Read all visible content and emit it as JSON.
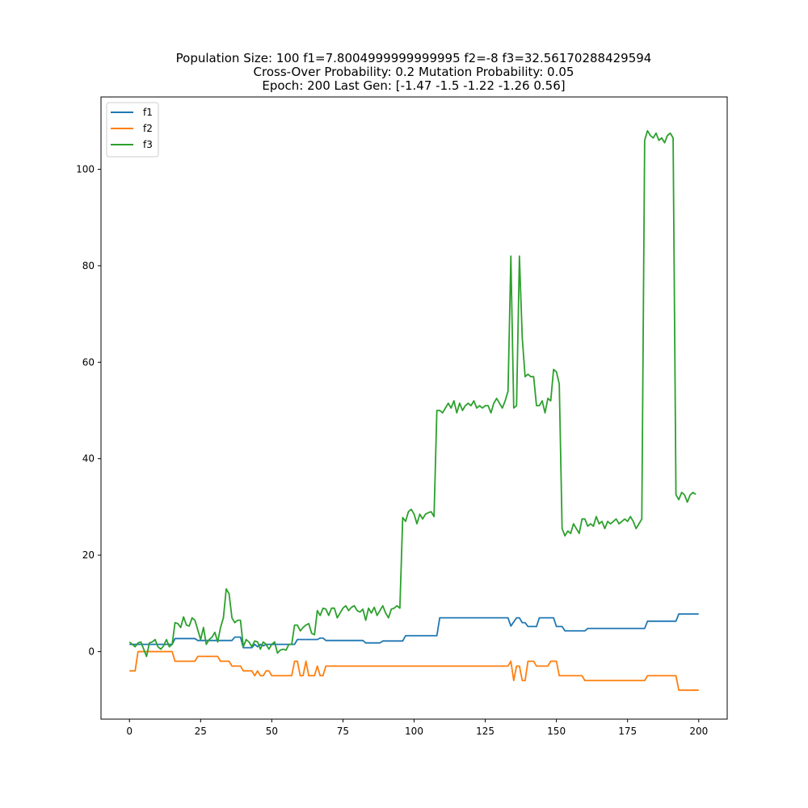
{
  "chart_data": {
    "type": "line",
    "title_lines": [
      "Population Size: 100 f1=7.8004999999999995 f2=-8 f3=32.56170288429594",
      "Cross-Over Probability: 0.2 Mutation Probability: 0.05",
      "Epoch: 200 Last Gen: [-1.47 -1.5  -1.22 -1.26  0.56]"
    ],
    "xlabel": "",
    "ylabel": "",
    "xlim": [
      -10,
      210
    ],
    "ylim": [
      -14,
      115
    ],
    "xticks": [
      0,
      25,
      50,
      75,
      100,
      125,
      150,
      175,
      200
    ],
    "yticks": [
      0,
      20,
      40,
      60,
      80,
      100
    ],
    "grid": false,
    "legend_position": "upper-left",
    "colors": {
      "f1": "#1f77b4",
      "f2": "#ff7f0e",
      "f3": "#2ca02c",
      "axes": "#000000"
    },
    "series": [
      {
        "name": "f1",
        "points": [
          [
            0,
            1.5
          ],
          [
            15,
            1.5
          ],
          [
            16,
            2.7
          ],
          [
            23,
            2.7
          ],
          [
            24,
            2.3
          ],
          [
            36,
            2.3
          ],
          [
            37,
            3.0
          ],
          [
            39,
            3.0
          ],
          [
            40,
            0.8
          ],
          [
            43,
            0.8
          ],
          [
            44,
            1.5
          ],
          [
            45,
            1.0
          ],
          [
            46,
            1.5
          ],
          [
            47,
            1.2
          ],
          [
            48,
            1.5
          ],
          [
            50,
            1.5
          ],
          [
            58,
            1.5
          ],
          [
            59,
            2.5
          ],
          [
            66,
            2.5
          ],
          [
            67,
            2.8
          ],
          [
            68,
            2.8
          ],
          [
            69,
            2.3
          ],
          [
            82,
            2.3
          ],
          [
            83,
            1.8
          ],
          [
            88,
            1.8
          ],
          [
            89,
            2.2
          ],
          [
            96,
            2.2
          ],
          [
            97,
            3.3
          ],
          [
            108,
            3.3
          ],
          [
            109,
            7.0
          ],
          [
            133,
            7.0
          ],
          [
            134,
            5.3
          ],
          [
            136,
            7.0
          ],
          [
            137,
            7.0
          ],
          [
            138,
            6.0
          ],
          [
            139,
            6.0
          ],
          [
            140,
            5.2
          ],
          [
            143,
            5.2
          ],
          [
            144,
            7.0
          ],
          [
            149,
            7.0
          ],
          [
            150,
            5.2
          ],
          [
            152,
            5.2
          ],
          [
            153,
            4.3
          ],
          [
            160,
            4.3
          ],
          [
            161,
            4.8
          ],
          [
            181,
            4.8
          ],
          [
            182,
            6.3
          ],
          [
            192,
            6.3
          ],
          [
            193,
            7.8
          ],
          [
            200,
            7.8
          ]
        ]
      },
      {
        "name": "f2",
        "points": [
          [
            0,
            -4
          ],
          [
            2,
            -4
          ],
          [
            3,
            0
          ],
          [
            15,
            0
          ],
          [
            16,
            -2
          ],
          [
            23,
            -2
          ],
          [
            24,
            -1
          ],
          [
            31,
            -1
          ],
          [
            32,
            -2
          ],
          [
            35,
            -2
          ],
          [
            36,
            -3
          ],
          [
            39,
            -3
          ],
          [
            40,
            -4
          ],
          [
            43,
            -4
          ],
          [
            44,
            -5
          ],
          [
            45,
            -4
          ],
          [
            46,
            -5
          ],
          [
            47,
            -5
          ],
          [
            48,
            -4
          ],
          [
            49,
            -4
          ],
          [
            50,
            -5
          ],
          [
            57,
            -5
          ],
          [
            58,
            -2
          ],
          [
            59,
            -2
          ],
          [
            60,
            -5
          ],
          [
            61,
            -5
          ],
          [
            62,
            -2
          ],
          [
            63,
            -5
          ],
          [
            65,
            -5
          ],
          [
            66,
            -3
          ],
          [
            67,
            -5
          ],
          [
            68,
            -5
          ],
          [
            69,
            -3
          ],
          [
            133,
            -3
          ],
          [
            134,
            -2
          ],
          [
            135,
            -6
          ],
          [
            136,
            -3
          ],
          [
            137,
            -3
          ],
          [
            138,
            -6
          ],
          [
            139,
            -6
          ],
          [
            140,
            -2
          ],
          [
            142,
            -2
          ],
          [
            143,
            -3
          ],
          [
            147,
            -3
          ],
          [
            148,
            -2
          ],
          [
            150,
            -2
          ],
          [
            151,
            -5
          ],
          [
            159,
            -5
          ],
          [
            160,
            -6
          ],
          [
            181,
            -6
          ],
          [
            182,
            -5
          ],
          [
            192,
            -5
          ],
          [
            193,
            -8
          ],
          [
            200,
            -8
          ]
        ]
      },
      {
        "name": "f3",
        "points": [
          [
            0,
            2.0
          ],
          [
            1,
            1.5
          ],
          [
            2,
            1.0
          ],
          [
            3,
            1.8
          ],
          [
            4,
            2.0
          ],
          [
            5,
            0.5
          ],
          [
            6,
            -1.0
          ],
          [
            7,
            1.8
          ],
          [
            8,
            2.0
          ],
          [
            9,
            2.5
          ],
          [
            10,
            1.0
          ],
          [
            11,
            0.5
          ],
          [
            12,
            1.2
          ],
          [
            13,
            2.5
          ],
          [
            14,
            1.0
          ],
          [
            15,
            1.5
          ],
          [
            16,
            6.0
          ],
          [
            17,
            5.8
          ],
          [
            18,
            5.0
          ],
          [
            19,
            7.2
          ],
          [
            20,
            5.5
          ],
          [
            21,
            5.3
          ],
          [
            22,
            7.0
          ],
          [
            23,
            6.5
          ],
          [
            24,
            4.5
          ],
          [
            25,
            2.5
          ],
          [
            26,
            5.0
          ],
          [
            27,
            1.5
          ],
          [
            28,
            2.5
          ],
          [
            29,
            3.0
          ],
          [
            30,
            4.0
          ],
          [
            31,
            2.0
          ],
          [
            32,
            5.0
          ],
          [
            33,
            7.0
          ],
          [
            34,
            13.0
          ],
          [
            35,
            12.0
          ],
          [
            36,
            7.0
          ],
          [
            37,
            6.0
          ],
          [
            38,
            6.5
          ],
          [
            39,
            6.5
          ],
          [
            40,
            1.0
          ],
          [
            41,
            2.5
          ],
          [
            42,
            2.0
          ],
          [
            43,
            1.0
          ],
          [
            44,
            2.2
          ],
          [
            45,
            2.0
          ],
          [
            46,
            0.5
          ],
          [
            47,
            2.0
          ],
          [
            48,
            1.5
          ],
          [
            49,
            0.5
          ],
          [
            50,
            1.5
          ],
          [
            51,
            2.0
          ],
          [
            52,
            -0.3
          ],
          [
            53,
            0.3
          ],
          [
            54,
            0.5
          ],
          [
            55,
            0.3
          ],
          [
            56,
            1.5
          ],
          [
            57,
            1.5
          ],
          [
            58,
            5.5
          ],
          [
            59,
            5.5
          ],
          [
            60,
            4.3
          ],
          [
            61,
            5.0
          ],
          [
            62,
            5.5
          ],
          [
            63,
            5.8
          ],
          [
            64,
            3.8
          ],
          [
            65,
            3.5
          ],
          [
            66,
            8.5
          ],
          [
            67,
            7.5
          ],
          [
            68,
            9.0
          ],
          [
            69,
            8.8
          ],
          [
            70,
            7.5
          ],
          [
            71,
            9.0
          ],
          [
            72,
            9.0
          ],
          [
            73,
            7.0
          ],
          [
            74,
            8.0
          ],
          [
            75,
            9.0
          ],
          [
            76,
            9.5
          ],
          [
            77,
            8.5
          ],
          [
            78,
            9.2
          ],
          [
            79,
            9.5
          ],
          [
            80,
            8.5
          ],
          [
            81,
            8.2
          ],
          [
            82,
            8.8
          ],
          [
            83,
            6.5
          ],
          [
            84,
            9.0
          ],
          [
            85,
            8.0
          ],
          [
            86,
            9.2
          ],
          [
            87,
            7.5
          ],
          [
            88,
            8.5
          ],
          [
            89,
            9.5
          ],
          [
            90,
            8.0
          ],
          [
            91,
            7.0
          ],
          [
            92,
            8.8
          ],
          [
            93,
            9.0
          ],
          [
            94,
            9.5
          ],
          [
            95,
            9.0
          ],
          [
            96,
            27.8
          ],
          [
            97,
            27.0
          ],
          [
            98,
            29.0
          ],
          [
            99,
            29.5
          ],
          [
            100,
            28.5
          ],
          [
            101,
            26.5
          ],
          [
            102,
            28.5
          ],
          [
            103,
            27.5
          ],
          [
            104,
            28.5
          ],
          [
            105,
            28.8
          ],
          [
            106,
            29.0
          ],
          [
            107,
            28.0
          ],
          [
            108,
            50.0
          ],
          [
            109,
            50.0
          ],
          [
            110,
            49.5
          ],
          [
            111,
            50.5
          ],
          [
            112,
            51.5
          ],
          [
            113,
            50.5
          ],
          [
            114,
            52.0
          ],
          [
            115,
            49.5
          ],
          [
            116,
            51.5
          ],
          [
            117,
            50.0
          ],
          [
            118,
            51.0
          ],
          [
            119,
            51.5
          ],
          [
            120,
            51.0
          ],
          [
            121,
            52.0
          ],
          [
            122,
            50.5
          ],
          [
            123,
            51.0
          ],
          [
            124,
            50.5
          ],
          [
            125,
            51.0
          ],
          [
            126,
            51.0
          ],
          [
            127,
            49.5
          ],
          [
            128,
            51.5
          ],
          [
            129,
            52.5
          ],
          [
            130,
            51.5
          ],
          [
            131,
            50.5
          ],
          [
            132,
            52.0
          ],
          [
            133,
            54.0
          ],
          [
            134,
            82.0
          ],
          [
            135,
            50.5
          ],
          [
            136,
            51.0
          ],
          [
            137,
            82.0
          ],
          [
            138,
            65.0
          ],
          [
            139,
            57.0
          ],
          [
            140,
            57.5
          ],
          [
            141,
            57.0
          ],
          [
            142,
            57.0
          ],
          [
            143,
            51.0
          ],
          [
            144,
            51.0
          ],
          [
            145,
            52.0
          ],
          [
            146,
            49.5
          ],
          [
            147,
            52.5
          ],
          [
            148,
            52.0
          ],
          [
            149,
            58.5
          ],
          [
            150,
            58.0
          ],
          [
            151,
            55.5
          ],
          [
            152,
            25.5
          ],
          [
            153,
            24.0
          ],
          [
            154,
            25.0
          ],
          [
            155,
            24.5
          ],
          [
            156,
            26.5
          ],
          [
            157,
            25.5
          ],
          [
            158,
            24.5
          ],
          [
            159,
            27.5
          ],
          [
            160,
            27.5
          ],
          [
            161,
            26.0
          ],
          [
            162,
            26.5
          ],
          [
            163,
            26.0
          ],
          [
            164,
            28.0
          ],
          [
            165,
            26.5
          ],
          [
            166,
            27.0
          ],
          [
            167,
            25.5
          ],
          [
            168,
            27.0
          ],
          [
            169,
            26.5
          ],
          [
            170,
            27.0
          ],
          [
            171,
            27.5
          ],
          [
            172,
            26.5
          ],
          [
            173,
            27.0
          ],
          [
            174,
            27.5
          ],
          [
            175,
            27.0
          ],
          [
            176,
            28.0
          ],
          [
            177,
            27.0
          ],
          [
            178,
            25.5
          ],
          [
            179,
            26.5
          ],
          [
            180,
            27.5
          ],
          [
            181,
            106.0
          ],
          [
            182,
            108.0
          ],
          [
            183,
            107.0
          ],
          [
            184,
            106.5
          ],
          [
            185,
            107.5
          ],
          [
            186,
            106.0
          ],
          [
            187,
            106.5
          ],
          [
            188,
            105.5
          ],
          [
            189,
            107.0
          ],
          [
            190,
            107.5
          ],
          [
            191,
            106.5
          ],
          [
            192,
            32.5
          ],
          [
            193,
            31.5
          ],
          [
            194,
            33.0
          ],
          [
            195,
            32.5
          ],
          [
            196,
            31.0
          ],
          [
            197,
            32.5
          ],
          [
            198,
            33.0
          ],
          [
            199,
            32.6
          ]
        ]
      }
    ]
  }
}
